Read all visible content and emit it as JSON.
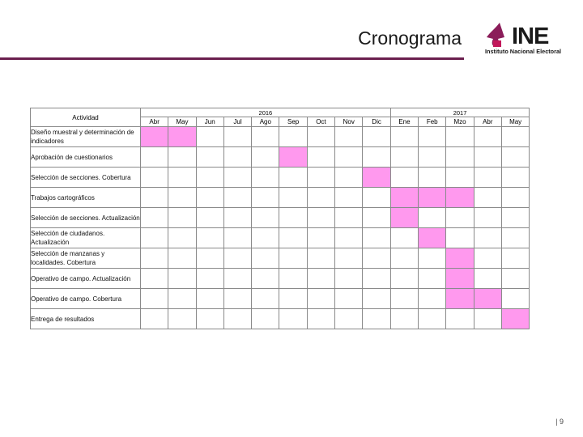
{
  "header": {
    "title": "Cronograma",
    "logo_text": "INE",
    "logo_subtitle": "Instituto Nacional Electoral"
  },
  "colors": {
    "accent_rule": "#6b1f4e",
    "highlight": "#ff99ee",
    "grid": "#8a8a8a"
  },
  "gantt": {
    "activity_header": "Actividad",
    "years": [
      {
        "label": "2016",
        "span": 9
      },
      {
        "label": "2017",
        "span": 5
      }
    ],
    "months": [
      "Abr",
      "May",
      "Jun",
      "Jul",
      "Ago",
      "Sep",
      "Oct",
      "Nov",
      "Dic",
      "Ene",
      "Feb",
      "Mzo",
      "Abr",
      "May"
    ],
    "rows": [
      {
        "activity": "Diseño muestral y determinación de indicadores",
        "active": [
          0,
          1
        ]
      },
      {
        "activity": "Aprobación de cuestionarios",
        "active": [
          5
        ]
      },
      {
        "activity": "Selección de secciones. Cobertura",
        "active": [
          8
        ]
      },
      {
        "activity": "Trabajos cartográficos",
        "active": [
          9,
          10,
          11
        ]
      },
      {
        "activity": "Selección de secciones. Actualización",
        "active": [
          9
        ]
      },
      {
        "activity": "Selección de ciudadanos. Actualización",
        "active": [
          10
        ]
      },
      {
        "activity": "Selección de manzanas y localidades. Cobertura",
        "active": [
          11
        ]
      },
      {
        "activity": "Operativo de campo. Actualización",
        "active": [
          11
        ]
      },
      {
        "activity": "Operativo de campo. Cobertura",
        "active": [
          11,
          12
        ]
      },
      {
        "activity": "Entrega de resultados",
        "active": [
          13
        ]
      }
    ]
  },
  "footer": {
    "page_number": "| 9"
  }
}
